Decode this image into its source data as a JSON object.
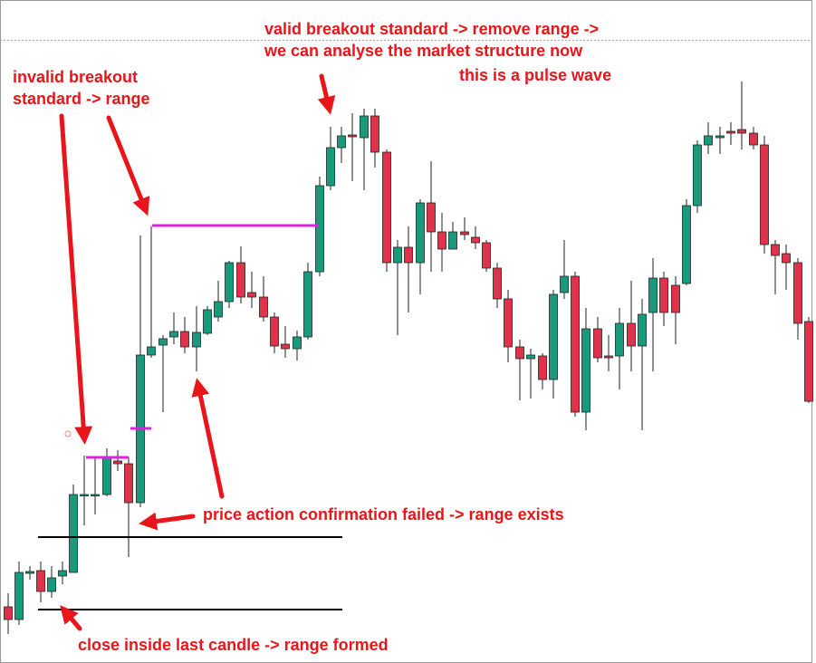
{
  "annotations": {
    "valid_breakout_line1": "valid breakout standard -> remove range ->",
    "valid_breakout_line2": "we can analyse the market structure now",
    "pulse_wave": "this is a pulse wave",
    "invalid_breakout_line1": "invalid breakout",
    "invalid_breakout_line2": "standard -> range",
    "pa_failed": "price action confirmation failed -> range exists",
    "range_formed": "close inside last candle -> range formed"
  }
}
